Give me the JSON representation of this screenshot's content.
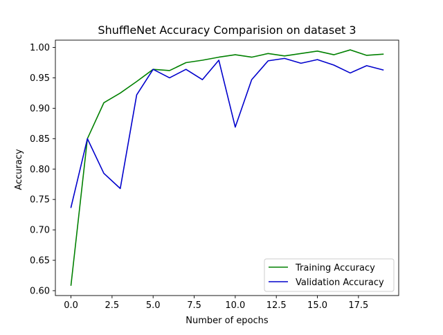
{
  "chart_data": {
    "type": "line",
    "title": "ShuffleNet Accuracy Comparision on dataset 3",
    "xlabel": "Number of epochs",
    "ylabel": "Accuracy",
    "xlim": [
      -0.95,
      19.95
    ],
    "ylim": [
      0.592,
      1.012
    ],
    "xticks": [
      0.0,
      2.5,
      5.0,
      7.5,
      10.0,
      12.5,
      15.0,
      17.5
    ],
    "xtick_labels": [
      "0.0",
      "2.5",
      "5.0",
      "7.5",
      "10.0",
      "12.5",
      "15.0",
      "17.5"
    ],
    "yticks": [
      0.6,
      0.65,
      0.7,
      0.75,
      0.8,
      0.85,
      0.9,
      0.95,
      1.0
    ],
    "ytick_labels": [
      "0.60",
      "0.65",
      "0.70",
      "0.75",
      "0.80",
      "0.85",
      "0.90",
      "0.95",
      "1.00"
    ],
    "grid": false,
    "legend_position": "bottom-right",
    "x": [
      0,
      1,
      2,
      3,
      4,
      5,
      6,
      7,
      8,
      9,
      10,
      11,
      12,
      13,
      14,
      15,
      16,
      17,
      18,
      19
    ],
    "series": [
      {
        "name": "Training Accuracy",
        "color": "#008000",
        "values": [
          0.609,
          0.85,
          0.909,
          0.925,
          0.944,
          0.964,
          0.962,
          0.975,
          0.979,
          0.984,
          0.988,
          0.984,
          0.99,
          0.986,
          0.99,
          0.994,
          0.988,
          0.996,
          0.987,
          0.989
        ]
      },
      {
        "name": "Validation Accuracy",
        "color": "#0000cc",
        "values": [
          0.737,
          0.85,
          0.793,
          0.768,
          0.922,
          0.964,
          0.95,
          0.964,
          0.947,
          0.979,
          0.869,
          0.947,
          0.978,
          0.982,
          0.974,
          0.98,
          0.971,
          0.958,
          0.97,
          0.963
        ]
      }
    ]
  }
}
